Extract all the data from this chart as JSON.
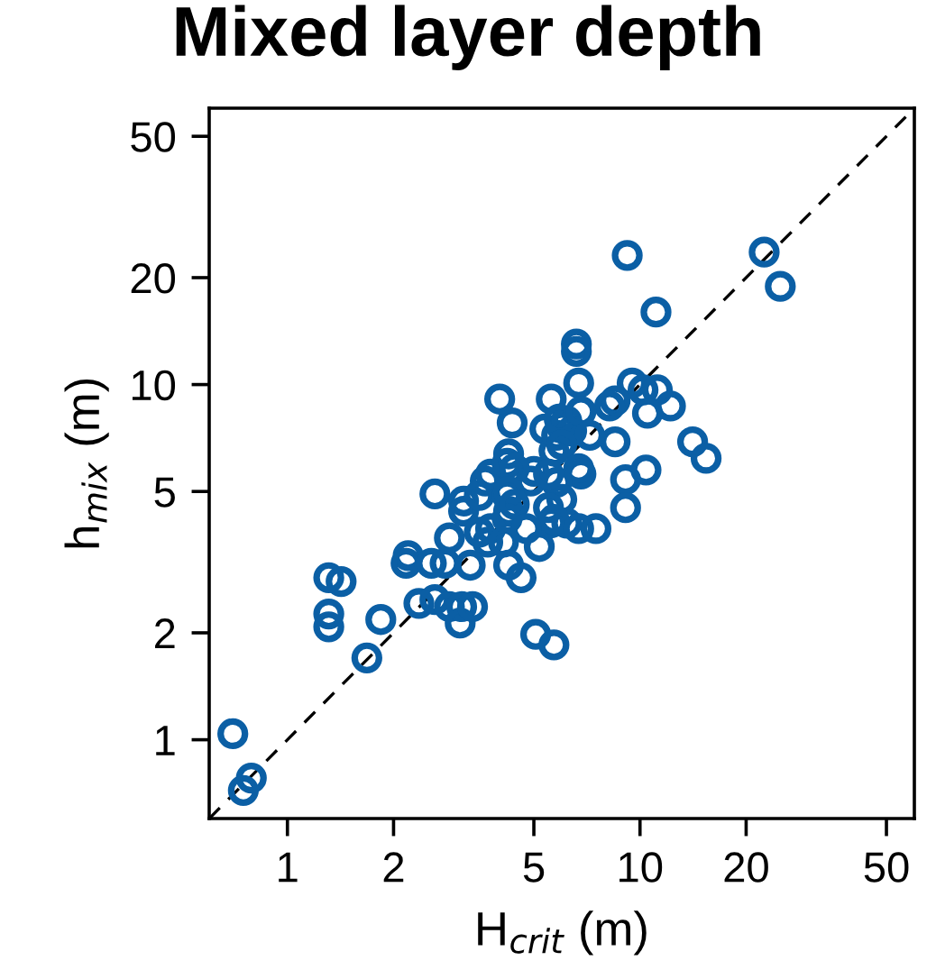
{
  "chart_data": {
    "type": "scatter",
    "title": "Mixed layer depth",
    "xlabel": "H$_{crit}$ (m)",
    "ylabel": "h$_{mix}$ (m)",
    "log": "xy",
    "xlim": [
      0.6,
      60
    ],
    "ylim": [
      0.6,
      60
    ],
    "xticks": [
      1,
      2,
      5,
      10,
      20,
      50
    ],
    "yticks": [
      1,
      2,
      5,
      10,
      20,
      50
    ],
    "grid": false,
    "legend": false,
    "marker": "circle",
    "series": [
      {
        "color": "#0b5fa5",
        "x": [
          0.7,
          0.75,
          0.79,
          1.31,
          1.42,
          1.31,
          1.31,
          1.84,
          1.68,
          2.2,
          2.17,
          2.36,
          2.62,
          2.88,
          3.12,
          3.09,
          3.35,
          2.62,
          2.88,
          3.16,
          3.16,
          3.64,
          3.5,
          3.77,
          4.24,
          4.2,
          4.34,
          4.0,
          5.6,
          5.37,
          5.7,
          5.0,
          4.9,
          4.2,
          4.24,
          3.77,
          3.7,
          3.5,
          4.1,
          5.18,
          5.6,
          2.8,
          2.56,
          3.3,
          4.24,
          4.6,
          5.06,
          5.7,
          9.2,
          22.5,
          25,
          11.1,
          6.6,
          6.6,
          6.7,
          9.5,
          10.2,
          11.2,
          12.2,
          10.5,
          8.5,
          8.2,
          8.5,
          14.1,
          15.4,
          9.1,
          10.4,
          9.1,
          6.0,
          5.8,
          6.2,
          6.4,
          5.9,
          6.8,
          7.2,
          6.0,
          6.7,
          6.8,
          5.8,
          6.0,
          5.5,
          6.2,
          5.7,
          6.7,
          7.5,
          4.4,
          4.24,
          5.5,
          4.2,
          4.4,
          4.76
        ],
        "values": [
          1.04,
          0.72,
          0.78,
          2.86,
          2.79,
          2.26,
          2.08,
          2.18,
          1.7,
          3.3,
          3.14,
          2.42,
          2.48,
          2.37,
          2.37,
          2.13,
          2.37,
          4.92,
          3.7,
          4.7,
          4.4,
          5.35,
          4.87,
          5.6,
          6.38,
          6.0,
          7.8,
          9.1,
          9.1,
          7.5,
          6.5,
          5.7,
          5.35,
          4.87,
          4.4,
          3.93,
          3.6,
          3.84,
          3.6,
          3.5,
          4.08,
          3.14,
          3.14,
          3.1,
          3.1,
          2.86,
          1.98,
          1.85,
          23.1,
          23.6,
          18.9,
          16.0,
          13.0,
          12.4,
          10.1,
          10.1,
          9.66,
          9.66,
          8.7,
          8.3,
          9.0,
          8.7,
          6.9,
          6.9,
          6.2,
          5.4,
          5.75,
          4.5,
          7.6,
          7.2,
          7.9,
          7.4,
          8.0,
          8.4,
          7.2,
          6.77,
          5.8,
          5.6,
          5.3,
          4.75,
          4.5,
          4.07,
          4.17,
          3.93,
          3.93,
          5.8,
          5.0,
          5.6,
          4.2,
          4.6,
          3.93
        ]
      },
      {
        "type": "line",
        "color": "#000000",
        "line_style": "dashed",
        "marker": "none",
        "x": [
          0.6,
          60
        ],
        "values": [
          0.6,
          60
        ]
      }
    ]
  }
}
